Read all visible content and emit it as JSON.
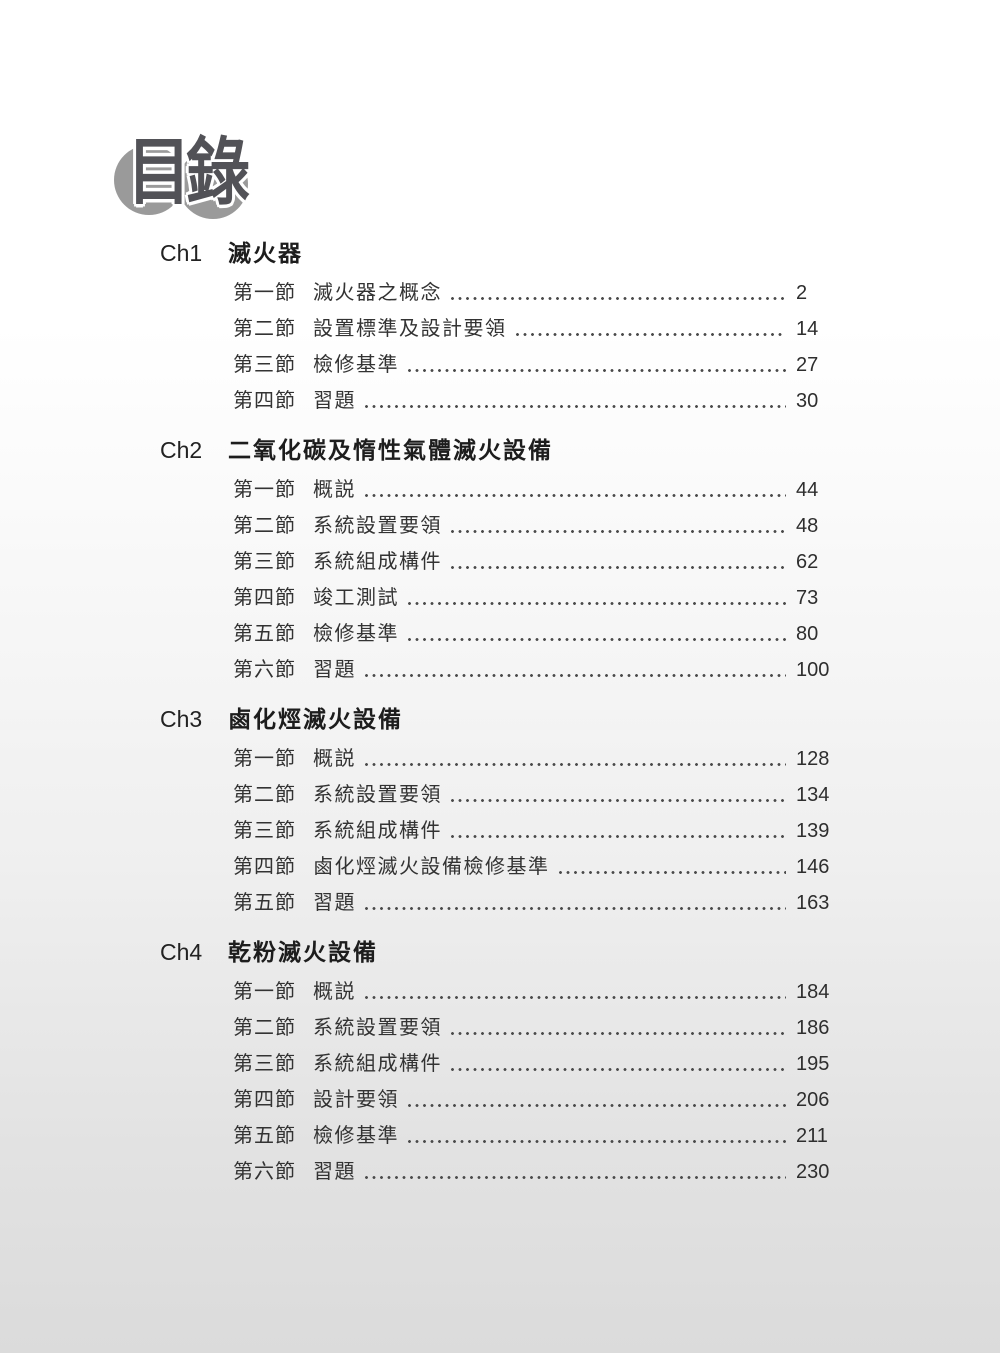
{
  "logo": {
    "text": "目錄"
  },
  "chapters": [
    {
      "label": "Ch1",
      "title": "滅火器",
      "sections": [
        {
          "label": "第一節",
          "title": "滅火器之概念",
          "page": "2"
        },
        {
          "label": "第二節",
          "title": "設置標準及設計要領",
          "page": "14"
        },
        {
          "label": "第三節",
          "title": "檢修基準",
          "page": "27"
        },
        {
          "label": "第四節",
          "title": "習題",
          "page": "30"
        }
      ]
    },
    {
      "label": "Ch2",
      "title": "二氧化碳及惰性氣體滅火設備",
      "sections": [
        {
          "label": "第一節",
          "title": "概説",
          "page": "44"
        },
        {
          "label": "第二節",
          "title": "系統設置要領",
          "page": "48"
        },
        {
          "label": "第三節",
          "title": "系統組成構件",
          "page": "62"
        },
        {
          "label": "第四節",
          "title": "竣工測試",
          "page": "73"
        },
        {
          "label": "第五節",
          "title": "檢修基準",
          "page": "80"
        },
        {
          "label": "第六節",
          "title": "習題",
          "page": "100"
        }
      ]
    },
    {
      "label": "Ch3",
      "title": "鹵化烴滅火設備",
      "sections": [
        {
          "label": "第一節",
          "title": "概説",
          "page": "128"
        },
        {
          "label": "第二節",
          "title": "系統設置要領",
          "page": "134"
        },
        {
          "label": "第三節",
          "title": "系統組成構件",
          "page": "139"
        },
        {
          "label": "第四節",
          "title": "鹵化烴滅火設備檢修基準",
          "page": "146"
        },
        {
          "label": "第五節",
          "title": "習題",
          "page": "163"
        }
      ]
    },
    {
      "label": "Ch4",
      "title": "乾粉滅火設備",
      "sections": [
        {
          "label": "第一節",
          "title": "概説",
          "page": "184"
        },
        {
          "label": "第二節",
          "title": "系統設置要領",
          "page": "186"
        },
        {
          "label": "第三節",
          "title": "系統組成構件",
          "page": "195"
        },
        {
          "label": "第四節",
          "title": "設計要領",
          "page": "206"
        },
        {
          "label": "第五節",
          "title": "檢修基準",
          "page": "211"
        },
        {
          "label": "第六節",
          "title": "習題",
          "page": "230"
        }
      ]
    }
  ]
}
